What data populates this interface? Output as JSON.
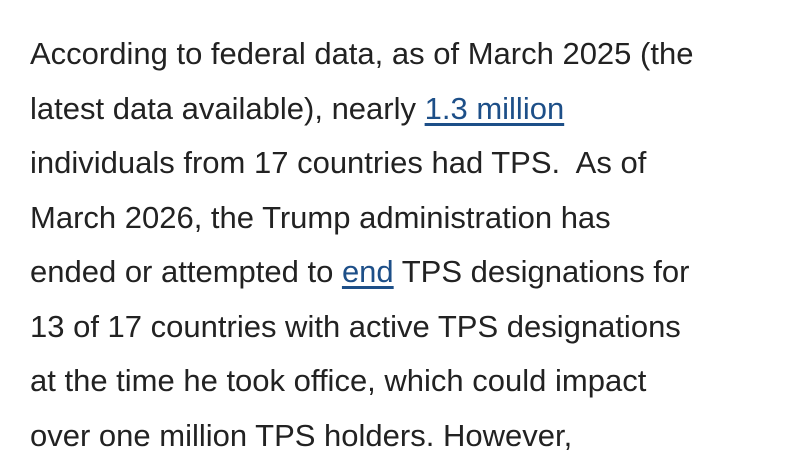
{
  "paragraph": {
    "lines": [
      [
        {
          "text": "According to federal data, as of March 2025 (the"
        }
      ],
      [
        {
          "text": "latest data available), nearly "
        },
        {
          "text": "1.3 million",
          "link": true
        }
      ],
      [
        {
          "text": "individuals from 17 countries had TPS.  As of"
        }
      ],
      [
        {
          "text": "March 2026, the Trump administration has"
        }
      ],
      [
        {
          "text": "ended or attempted to "
        },
        {
          "text": "end",
          "link": true
        },
        {
          "text": " TPS designations for"
        }
      ],
      [
        {
          "text": "13 of 17 countries with active TPS designations"
        }
      ],
      [
        {
          "text": "at the time he took office, which could impact"
        }
      ],
      [
        {
          "text": "over one million TPS holders. However,"
        }
      ]
    ]
  }
}
